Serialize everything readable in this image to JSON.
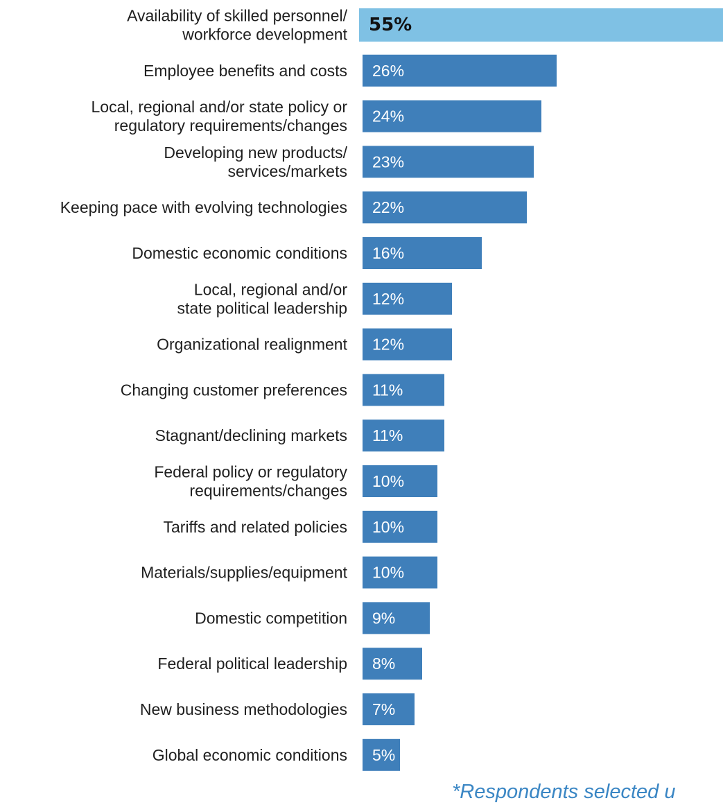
{
  "chart_data": {
    "type": "bar",
    "orientation": "horizontal",
    "categories": [
      [
        "Availability of skilled personnel/",
        "workforce development"
      ],
      [
        "Employee benefits and costs"
      ],
      [
        "Local, regional and/or state policy or",
        "regulatory requirements/changes"
      ],
      [
        "Developing new products/",
        "services/markets"
      ],
      [
        "Keeping pace with evolving technologies"
      ],
      [
        "Domestic economic conditions"
      ],
      [
        "Local, regional and/or",
        "state political leadership"
      ],
      [
        "Organizational realignment"
      ],
      [
        "Changing customer preferences"
      ],
      [
        "Stagnant/declining markets"
      ],
      [
        "Federal policy or regulatory",
        "requirements/changes"
      ],
      [
        "Tariffs and related policies"
      ],
      [
        "Materials/supplies/equipment"
      ],
      [
        "Domestic competition"
      ],
      [
        "Federal political leadership"
      ],
      [
        "New business methodologies"
      ],
      [
        "Global economic conditions"
      ]
    ],
    "values": [
      55,
      26,
      24,
      23,
      22,
      16,
      12,
      12,
      11,
      11,
      10,
      10,
      10,
      9,
      8,
      7,
      5
    ],
    "value_labels": [
      "55%",
      "26%",
      "24%",
      "23%",
      "22%",
      "16%",
      "12%",
      "12%",
      "11%",
      "11%",
      "10%",
      "10%",
      "10%",
      "9%",
      "8%",
      "7%",
      "5%"
    ],
    "highlight_index": 0,
    "colors": {
      "bar": "#3f7fba",
      "highlight_bar": "#7fc1e4",
      "footnote": "#3a86c4"
    },
    "footnote": "*Respondents selected u",
    "title": "",
    "xlabel": "",
    "ylabel": ""
  }
}
